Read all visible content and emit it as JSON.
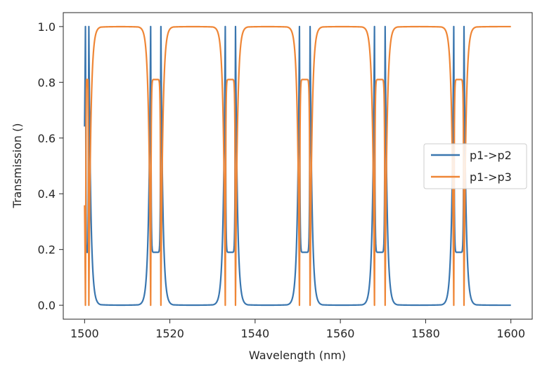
{
  "chart_data": {
    "type": "line",
    "title": "",
    "xlabel": "Wavelength (nm)",
    "ylabel": "Transmission ()",
    "xlim": [
      1495,
      1605
    ],
    "ylim": [
      -0.05,
      1.05
    ],
    "xticks": [
      1500,
      1520,
      1540,
      1560,
      1580,
      1600
    ],
    "xtick_labels": [
      "1500",
      "1520",
      "1540",
      "1560",
      "1580",
      "1600"
    ],
    "yticks": [
      0.0,
      0.2,
      0.4,
      0.6,
      0.8,
      1.0
    ],
    "ytick_labels": [
      "0.0",
      "0.2",
      "0.4",
      "0.6",
      "0.8",
      "1.0"
    ],
    "grid": false,
    "legend_position": "center-right",
    "x": {
      "start": 1500,
      "end": 1600,
      "step": 0.05
    },
    "x_description": "wavelength samples from 1500 to 1600 nm",
    "series": [
      {
        "name": "p1->p2",
        "color": "#3a76af",
        "model": "resonator-pairs",
        "resonance_pairs": [
          [
            1500.2,
            1501.0
          ],
          [
            1515.5,
            1517.9
          ],
          [
            1533.0,
            1535.4
          ],
          [
            1550.4,
            1552.9
          ],
          [
            1568.0,
            1570.5
          ],
          [
            1586.6,
            1589.0
          ]
        ],
        "values_at": {
          "1500": 0.19,
          "1510": 0.0,
          "1600": 0.0
        },
        "peak_value": 1.0,
        "floor_value": 0.0,
        "between_pair_dip": 0.19
      },
      {
        "name": "p1->p3",
        "color": "#ef8636",
        "model": "complement",
        "values_at": {
          "1500": 0.81,
          "1510": 1.0,
          "1600": 1.0
        },
        "peak_value": 1.0,
        "floor_value": 0.0,
        "between_pair_peak": 0.81
      }
    ]
  }
}
